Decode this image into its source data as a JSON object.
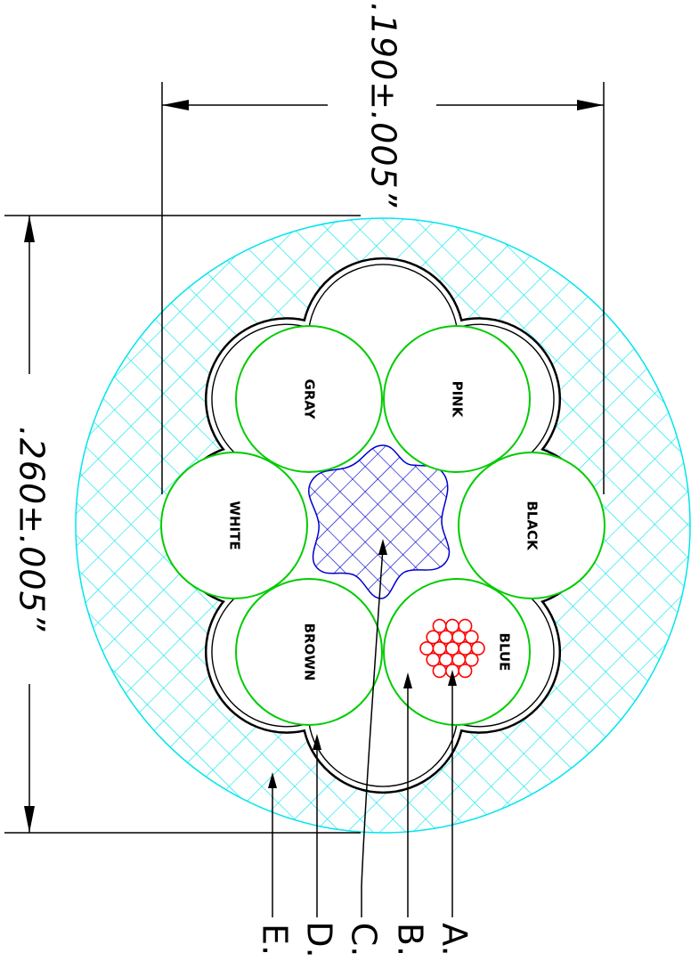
{
  "dimensions": {
    "width_label": ".190±.005”",
    "height_label": ".260±.005”"
  },
  "wires": [
    {
      "label": "PINK"
    },
    {
      "label": "GRAY"
    },
    {
      "label": "BLACK"
    },
    {
      "label": "WHITE"
    },
    {
      "label": "BLUE"
    },
    {
      "label": "BROWN"
    }
  ],
  "callouts": [
    {
      "label": "A."
    },
    {
      "label": "B."
    },
    {
      "label": "C."
    },
    {
      "label": "D."
    },
    {
      "label": "E."
    }
  ],
  "colors": {
    "jacket_hatch": "#00e5ee",
    "wire_outline": "#00cc00",
    "filler_hatch": "#0000cc",
    "conductor_strands": "#ff0000",
    "lines": "#000000"
  }
}
